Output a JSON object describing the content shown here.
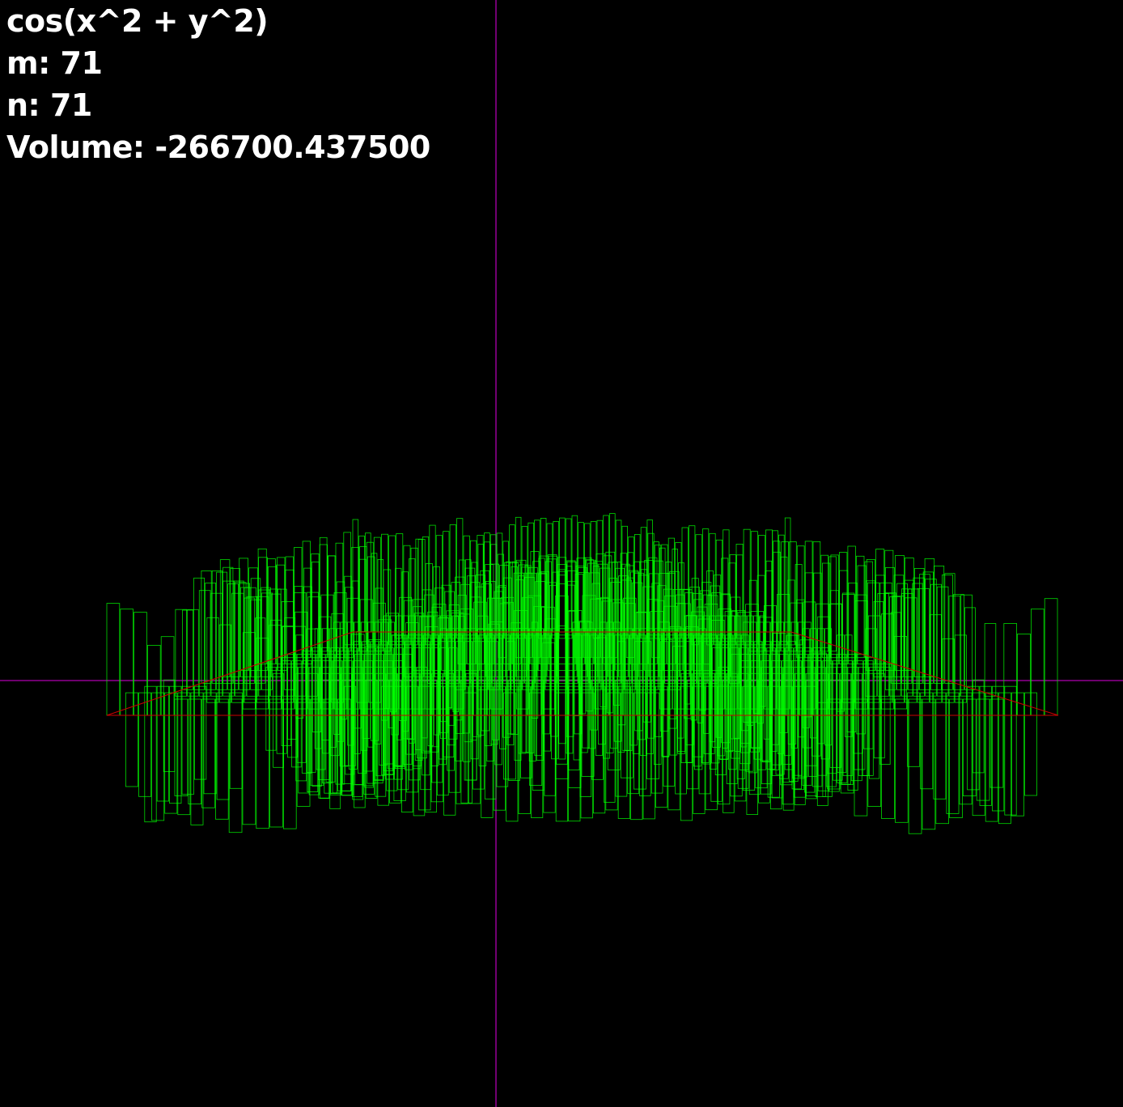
{
  "hud": {
    "function_label": "cos(x^2 + y^2)",
    "m_label": "m:",
    "m_value": "71",
    "n_label": "n:",
    "n_value": "71",
    "volume_label": "Volume:",
    "volume_value": "-266700.437500"
  },
  "colors": {
    "background": "#000000",
    "axis": "#b000b0",
    "bars": "#00ff00",
    "base_plane": "#cc0000",
    "text": "#ffffff"
  }
}
